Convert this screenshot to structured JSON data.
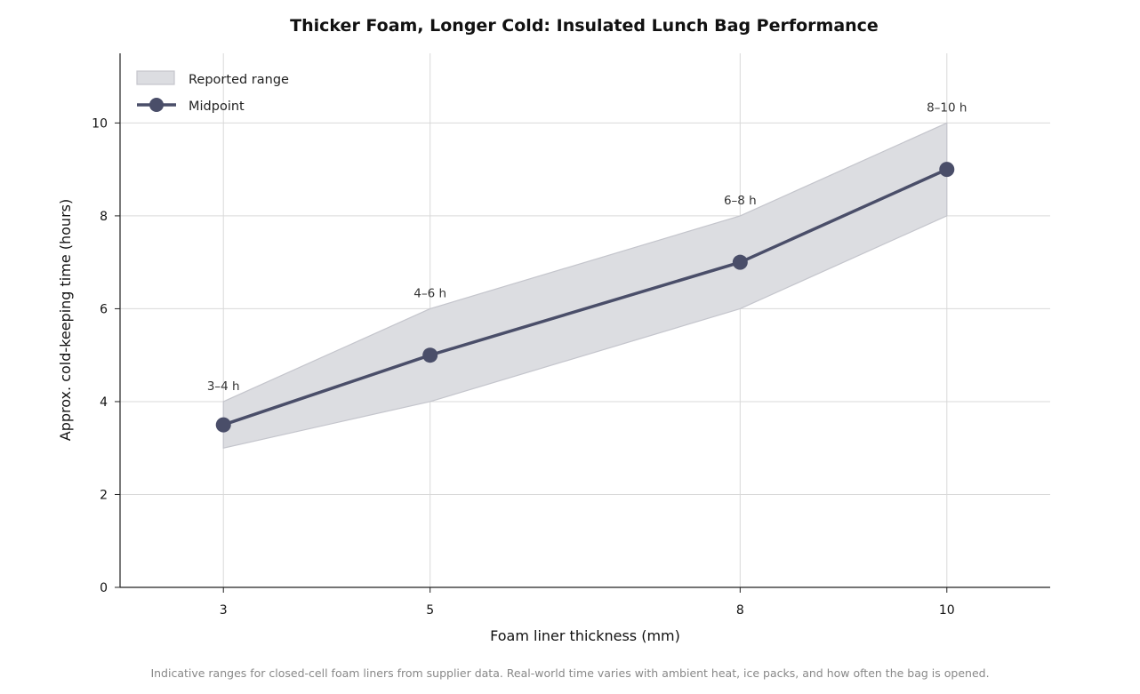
{
  "chart_data": {
    "type": "line",
    "title": "Thicker Foam, Longer Cold: Insulated Lunch Bag Performance",
    "xlabel": "Foam liner thickness (mm)",
    "ylabel": "Approx. cold-keeping time (hours)",
    "x": [
      3,
      5,
      8,
      10
    ],
    "x_ticks": [
      "3",
      "5",
      "8",
      "10"
    ],
    "y_ticks": [
      "0",
      "2",
      "4",
      "6",
      "8",
      "10"
    ],
    "xlim": [
      2,
      11
    ],
    "ylim": [
      0,
      11.5
    ],
    "grid": true,
    "legend_position": "top-left",
    "series": [
      {
        "name": "Midpoint",
        "type": "line",
        "values": [
          3.5,
          5,
          7,
          9
        ]
      },
      {
        "name": "Reported range",
        "type": "area",
        "lower": [
          3,
          4,
          6,
          8
        ],
        "upper": [
          4,
          6,
          8,
          10
        ]
      }
    ],
    "data_labels": [
      "3–4 h",
      "4–6 h",
      "6–8 h",
      "8–10 h"
    ],
    "footnote": "Indicative ranges for closed-cell foam liners from supplier data. Real-world time varies with ambient heat, ice packs, and how often the bag is opened.",
    "colors": {
      "line": "#4a4e69",
      "band_fill": "#dcdde1",
      "band_edge": "#c4c5cc",
      "grid": "#d9d9d9",
      "axis": "#222222"
    }
  }
}
